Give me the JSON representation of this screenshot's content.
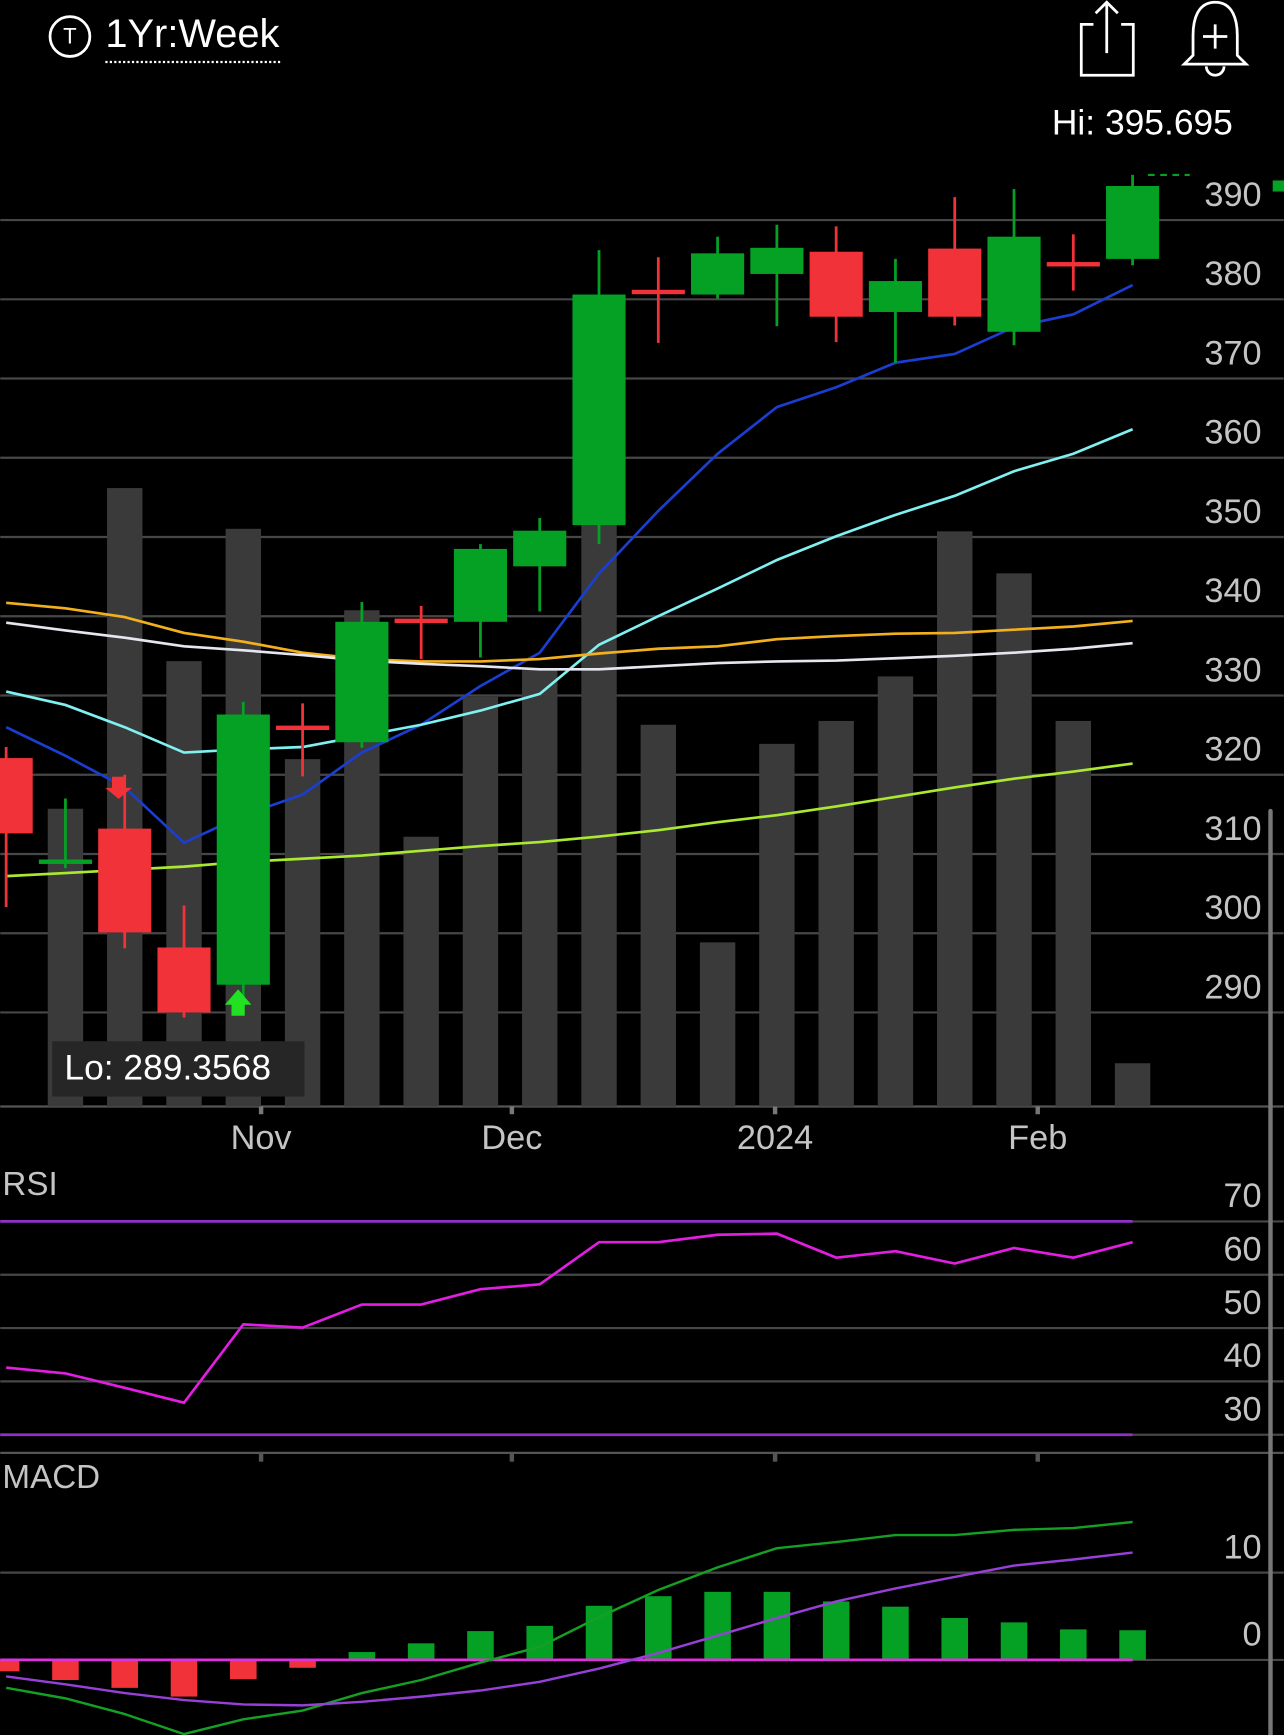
{
  "header": {
    "icon_letter": "T",
    "period": "1Yr:Week"
  },
  "chart_data": [
    {
      "type": "candlestick",
      "annotations": [
        "Hi: 395.695",
        "Lo: 289.3568"
      ],
      "x": [
        0,
        1,
        2,
        3,
        4,
        5,
        6,
        7,
        8,
        9,
        10,
        11,
        12,
        13,
        14,
        15,
        16,
        17,
        18,
        19
      ],
      "xlim": [
        -0.1,
        21.55
      ],
      "xticks": [
        {
          "value": 4.3,
          "label": "Nov"
        },
        {
          "value": 8.53,
          "label": "Dec"
        },
        {
          "value": 12.97,
          "label": "2024"
        },
        {
          "value": 17.4,
          "label": "Feb"
        }
      ],
      "open": [
        322.1,
        309.2,
        313.2,
        298.2,
        293.5,
        326.2,
        324.1,
        339.7,
        339.3,
        346.3,
        351.5,
        381.2,
        380.6,
        383.2,
        386.0,
        378.4,
        386.4,
        375.9,
        384.7,
        385.1
      ],
      "high": [
        323.5,
        317.0,
        320.0,
        303.5,
        329.2,
        329.0,
        341.8,
        341.3,
        349.1,
        352.4,
        386.2,
        385.3,
        387.9,
        389.4,
        389.2,
        385.1,
        392.9,
        393.9,
        388.2,
        395.695
      ],
      "low": [
        303.3,
        308.2,
        298.1,
        289.3568,
        291.4,
        319.8,
        323.4,
        334.6,
        334.8,
        340.6,
        349.1,
        374.5,
        380.1,
        376.6,
        374.6,
        372.0,
        376.7,
        374.2,
        381.1,
        384.3
      ],
      "close": [
        312.6,
        309.3,
        300.1,
        290.0,
        327.6,
        325.8,
        339.3,
        339.5,
        348.5,
        350.8,
        380.6,
        381.0,
        385.8,
        386.5,
        377.8,
        382.3,
        377.8,
        387.9,
        384.5,
        394.3
      ],
      "up_color": "#05a125",
      "down_color": "#f23239",
      "volume": [
        null,
        46.8,
        97.2,
        70,
        90.8,
        54.6,
        78,
        42.4,
        64.4,
        68.6,
        101.2,
        60,
        25.8,
        57,
        60.6,
        67.6,
        90.4,
        83.8,
        60.6,
        6.8
      ],
      "vlim": [
        0,
        160
      ],
      "volume_color": "#3a3a3a",
      "series": [
        {
          "color": "#1a3fd0",
          "values": [
            326,
            322.4,
            318.4,
            311.4,
            314.9,
            317.5,
            322.8,
            326.3,
            331.2,
            335.4,
            345.4,
            353.3,
            360.5,
            366.4,
            368.9,
            372,
            373.1,
            376.5,
            378.1,
            381.8
          ]
        },
        {
          "color": "#80f0f0",
          "values": [
            330.5,
            328.8,
            326,
            322.8,
            323.2,
            323.5,
            324.9,
            326.3,
            328.1,
            330.2,
            336.4,
            340,
            343.5,
            347.1,
            350.1,
            352.8,
            355.2,
            358.3,
            360.5,
            363.6
          ]
        },
        {
          "color": "#f2b01e",
          "values": [
            341.7,
            341,
            339.9,
            337.9,
            336.8,
            335.4,
            334.6,
            334.3,
            334.3,
            334.6,
            335.3,
            335.9,
            336.2,
            337.1,
            337.5,
            337.8,
            337.9,
            338.3,
            338.7,
            339.4
          ]
        },
        {
          "color": "#e6e6f0",
          "values": [
            339.2,
            338.2,
            337.3,
            336.2,
            335.7,
            335.1,
            334.4,
            334,
            333.7,
            333.3,
            333.3,
            333.7,
            334.1,
            334.3,
            334.4,
            334.7,
            335,
            335.4,
            335.9,
            336.6
          ]
        },
        {
          "color": "#aae832",
          "values": [
            307.2,
            307.6,
            308,
            308.4,
            309,
            309.4,
            309.8,
            310.4,
            311,
            311.5,
            312.2,
            313,
            314,
            314.9,
            316,
            317.2,
            318.4,
            319.5,
            320.4,
            321.4
          ]
        }
      ],
      "ylim": [
        278.13,
        406.6
      ],
      "yticks": [
        290,
        300,
        310,
        320,
        330,
        340,
        350,
        360,
        370,
        380,
        390
      ],
      "grid": true
    },
    {
      "type": "line",
      "title": "RSI",
      "x": [
        0,
        1,
        2,
        3,
        4,
        5,
        6,
        7,
        8,
        9,
        10,
        11,
        12,
        13,
        14,
        15,
        16,
        17,
        18,
        19
      ],
      "xlim": [
        -0.1,
        21.55
      ],
      "values": [
        42.6,
        41.5,
        38.8,
        36,
        50.7,
        50.1,
        54.4,
        54.4,
        57.3,
        58.2,
        66.1,
        66.1,
        67.5,
        67.7,
        63.2,
        64.4,
        62.1,
        65,
        63.2,
        66.1
      ],
      "color": "#e21ee2",
      "levels": [
        30,
        70
      ],
      "level_color": "#9030c8",
      "ylim": [
        26.6,
        79.1
      ],
      "yticks": [
        30,
        40,
        50,
        60,
        70
      ],
      "grid": true
    },
    {
      "type": "macd",
      "title": "MACD",
      "x": [
        0,
        1,
        2,
        3,
        4,
        5,
        6,
        7,
        8,
        9,
        10,
        11,
        12,
        13,
        14,
        15,
        16,
        17,
        18,
        19
      ],
      "xlim": [
        -0.1,
        21.55
      ],
      "histogram": [
        -1.3,
        -2.3,
        -3.2,
        -4.2,
        -2.2,
        -0.9,
        0.9,
        1.9,
        3.3,
        3.9,
        6.2,
        7.3,
        7.8,
        7.8,
        6.7,
        6.1,
        4.8,
        4.3,
        3.5,
        3.4
      ],
      "series": [
        {
          "color": "#14a024",
          "values": [
            -3.2,
            -4.4,
            -6.2,
            -8.5,
            -6.8,
            -5.8,
            -3.8,
            -2.3,
            -0.3,
            1.5,
            4.9,
            8,
            10.6,
            12.8,
            13.5,
            14.3,
            14.3,
            14.9,
            15.1,
            15.8
          ]
        },
        {
          "color": "#9640d8",
          "values": [
            -1.9,
            -2.8,
            -3.8,
            -4.6,
            -5.1,
            -5.2,
            -4.8,
            -4.2,
            -3.5,
            -2.5,
            -1,
            0.8,
            2.8,
            4.8,
            6.7,
            8.2,
            9.5,
            10.8,
            11.5,
            12.3
          ]
        }
      ],
      "zero_line_color": "#e030e0",
      "ylim": [
        -8.6,
        22.2
      ],
      "yticks": [
        0,
        10
      ],
      "grid": true
    }
  ]
}
